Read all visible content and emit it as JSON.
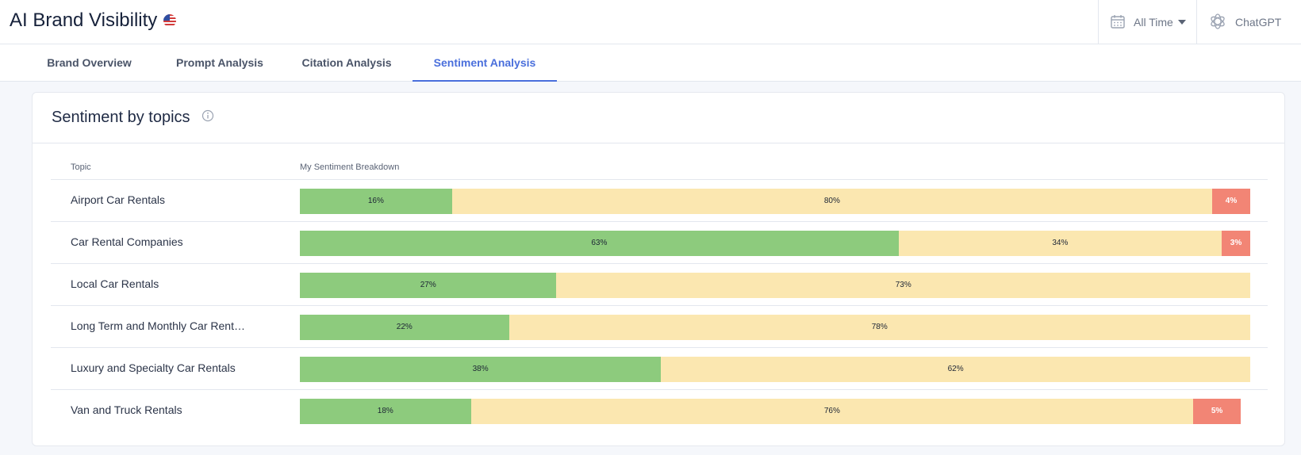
{
  "app": {
    "title": "AI Brand Visibility"
  },
  "header": {
    "date_filter": "All Time",
    "engine": "ChatGPT"
  },
  "tabs": [
    {
      "label": "Brand Overview",
      "active": false
    },
    {
      "label": "Prompt Analysis",
      "active": false
    },
    {
      "label": "Citation Analysis",
      "active": false
    },
    {
      "label": "Sentiment Analysis",
      "active": true
    }
  ],
  "card": {
    "title": "Sentiment by topics",
    "columns": {
      "topic": "Topic",
      "breakdown": "My Sentiment Breakdown"
    }
  },
  "colors": {
    "positive": "#8dcb7d",
    "neutral": "#fbe7b0",
    "negative": "#f28575",
    "accent": "#4a6fdc"
  },
  "chart_data": {
    "type": "bar",
    "stacked": true,
    "categories": [
      "Airport Car Rentals",
      "Car Rental Companies",
      "Local Car Rentals",
      "Long Term and Monthly Car Rent…",
      "Luxury and Specialty Car Rentals",
      "Van and Truck Rentals"
    ],
    "series": [
      {
        "values": [
          16,
          63,
          27,
          22,
          38,
          18
        ],
        "labels": [
          "16%",
          "63%",
          "27%",
          "22%",
          "38%",
          "18%"
        ]
      },
      {
        "values": [
          80,
          34,
          73,
          78,
          62,
          76
        ],
        "labels": [
          "80%",
          "34%",
          "73%",
          "78%",
          "62%",
          "76%"
        ]
      },
      {
        "values": [
          4,
          3,
          0,
          0,
          0,
          5
        ],
        "labels": [
          "4%",
          "3%",
          "",
          "",
          "",
          "5%"
        ]
      }
    ],
    "ylim": [
      0,
      100
    ]
  }
}
